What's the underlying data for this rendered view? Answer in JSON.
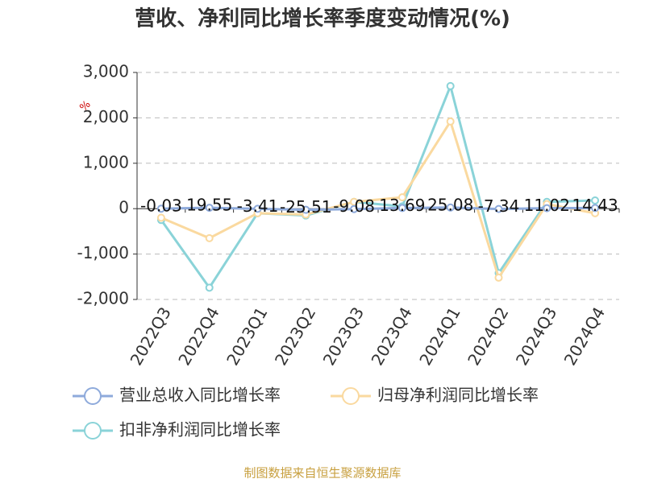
{
  "chart_data": {
    "type": "line",
    "title": "营收、净利同比增长率季度变动情况(%)",
    "y_unit": "%",
    "categories": [
      "2022Q3",
      "2022Q4",
      "2023Q1",
      "2023Q2",
      "2023Q3",
      "2023Q4",
      "2024Q1",
      "2024Q2",
      "2024Q3",
      "2024Q4"
    ],
    "series": [
      {
        "name": "营业总收入同比增长率",
        "color": "#8eaadb",
        "values": [
          -0.03,
          19.55,
          -3.41,
          -25.51,
          -9.08,
          13.69,
          25.08,
          -7.34,
          11.02,
          14.43
        ],
        "data_labels": true
      },
      {
        "name": "归母净利润同比增长率",
        "color": "#fad99f",
        "values": [
          -200,
          -650,
          -100,
          -130,
          150,
          250,
          1920,
          -1520,
          100,
          -100
        ]
      },
      {
        "name": "扣非净利润同比增长率",
        "color": "#8ad3d8",
        "values": [
          -250,
          -1740,
          -100,
          -150,
          150,
          50,
          2700,
          -1420,
          150,
          180
        ]
      }
    ],
    "ylim": [
      -2000,
      3000
    ],
    "yticks": [
      {
        "value": -2000,
        "label": "-2,000"
      },
      {
        "value": -1000,
        "label": "-1,000"
      },
      0,
      {
        "value": 1000,
        "label": "1,000"
      },
      {
        "value": 2000,
        "label": "2,000"
      },
      {
        "value": 3000,
        "label": "3,000"
      }
    ],
    "grid": true,
    "legend": "bottom",
    "source": "制图数据来自恒生聚源数据库"
  }
}
